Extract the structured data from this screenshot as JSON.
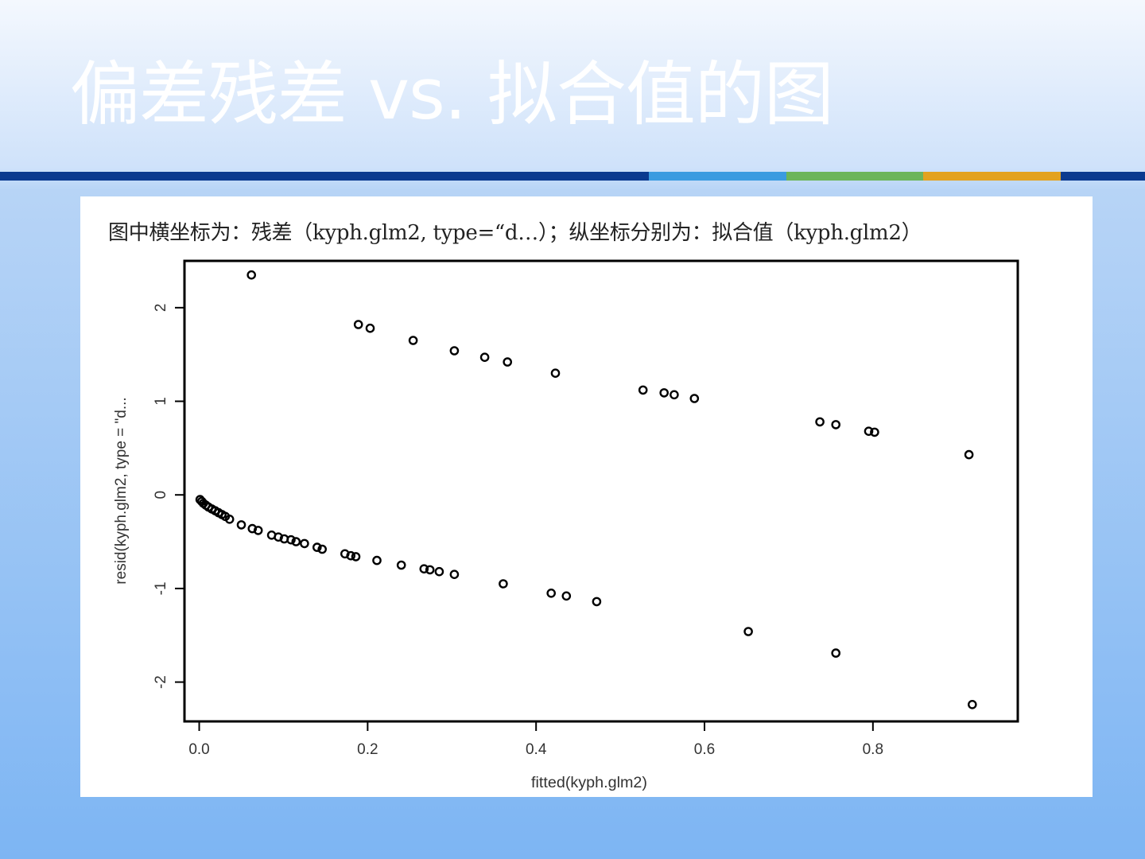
{
  "slide": {
    "title": "偏差残差 vs. 拟合值的图",
    "rule_colors": [
      "#0b3a8f",
      "#3a9be0",
      "#6cb55a",
      "#e3a21f",
      "#0b3a8f"
    ]
  },
  "chart_caption": "图中横坐标为：残差（kyph.glm2, type=“d…）；纵坐标分别为：拟合值（kyph.glm2）",
  "chart_data": {
    "type": "scatter",
    "title": "",
    "xlabel": "fitted(kyph.glm2)",
    "ylabel": "resid(kyph.glm2, type = \"d...",
    "xlim": [
      -0.0175,
      0.972
    ],
    "ylim": [
      -2.42,
      2.5
    ],
    "xticks": [
      0.0,
      0.2,
      0.4,
      0.6,
      0.8
    ],
    "xtick_labels": [
      "0.0",
      "0.2",
      "0.4",
      "0.6",
      "0.8"
    ],
    "yticks": [
      -2,
      -1,
      0,
      1,
      2
    ],
    "ytick_labels": [
      "-2",
      "-1",
      "0",
      "1",
      "2"
    ],
    "grid": false,
    "marker": "open-circle",
    "points": [
      {
        "x": 0.062,
        "y": 2.35
      },
      {
        "x": 0.189,
        "y": 1.82
      },
      {
        "x": 0.203,
        "y": 1.78
      },
      {
        "x": 0.254,
        "y": 1.65
      },
      {
        "x": 0.303,
        "y": 1.54
      },
      {
        "x": 0.339,
        "y": 1.47
      },
      {
        "x": 0.366,
        "y": 1.42
      },
      {
        "x": 0.423,
        "y": 1.3
      },
      {
        "x": 0.527,
        "y": 1.12
      },
      {
        "x": 0.552,
        "y": 1.09
      },
      {
        "x": 0.564,
        "y": 1.07
      },
      {
        "x": 0.588,
        "y": 1.03
      },
      {
        "x": 0.737,
        "y": 0.78
      },
      {
        "x": 0.756,
        "y": 0.75
      },
      {
        "x": 0.795,
        "y": 0.68
      },
      {
        "x": 0.802,
        "y": 0.67
      },
      {
        "x": 0.914,
        "y": 0.43
      },
      {
        "x": 0.001,
        "y": -0.05
      },
      {
        "x": 0.003,
        "y": -0.07
      },
      {
        "x": 0.005,
        "y": -0.09
      },
      {
        "x": 0.008,
        "y": -0.11
      },
      {
        "x": 0.011,
        "y": -0.13
      },
      {
        "x": 0.015,
        "y": -0.15
      },
      {
        "x": 0.019,
        "y": -0.17
      },
      {
        "x": 0.023,
        "y": -0.19
      },
      {
        "x": 0.027,
        "y": -0.21
      },
      {
        "x": 0.031,
        "y": -0.23
      },
      {
        "x": 0.036,
        "y": -0.26
      },
      {
        "x": 0.05,
        "y": -0.32
      },
      {
        "x": 0.063,
        "y": -0.36
      },
      {
        "x": 0.07,
        "y": -0.38
      },
      {
        "x": 0.086,
        "y": -0.43
      },
      {
        "x": 0.094,
        "y": -0.45
      },
      {
        "x": 0.101,
        "y": -0.47
      },
      {
        "x": 0.109,
        "y": -0.48
      },
      {
        "x": 0.115,
        "y": -0.5
      },
      {
        "x": 0.125,
        "y": -0.52
      },
      {
        "x": 0.14,
        "y": -0.56
      },
      {
        "x": 0.146,
        "y": -0.58
      },
      {
        "x": 0.173,
        "y": -0.63
      },
      {
        "x": 0.18,
        "y": -0.65
      },
      {
        "x": 0.186,
        "y": -0.66
      },
      {
        "x": 0.211,
        "y": -0.7
      },
      {
        "x": 0.24,
        "y": -0.75
      },
      {
        "x": 0.267,
        "y": -0.79
      },
      {
        "x": 0.274,
        "y": -0.8
      },
      {
        "x": 0.285,
        "y": -0.82
      },
      {
        "x": 0.303,
        "y": -0.85
      },
      {
        "x": 0.361,
        "y": -0.95
      },
      {
        "x": 0.418,
        "y": -1.05
      },
      {
        "x": 0.436,
        "y": -1.08
      },
      {
        "x": 0.472,
        "y": -1.14
      },
      {
        "x": 0.652,
        "y": -1.46
      },
      {
        "x": 0.756,
        "y": -1.69
      },
      {
        "x": 0.918,
        "y": -2.24
      }
    ]
  }
}
